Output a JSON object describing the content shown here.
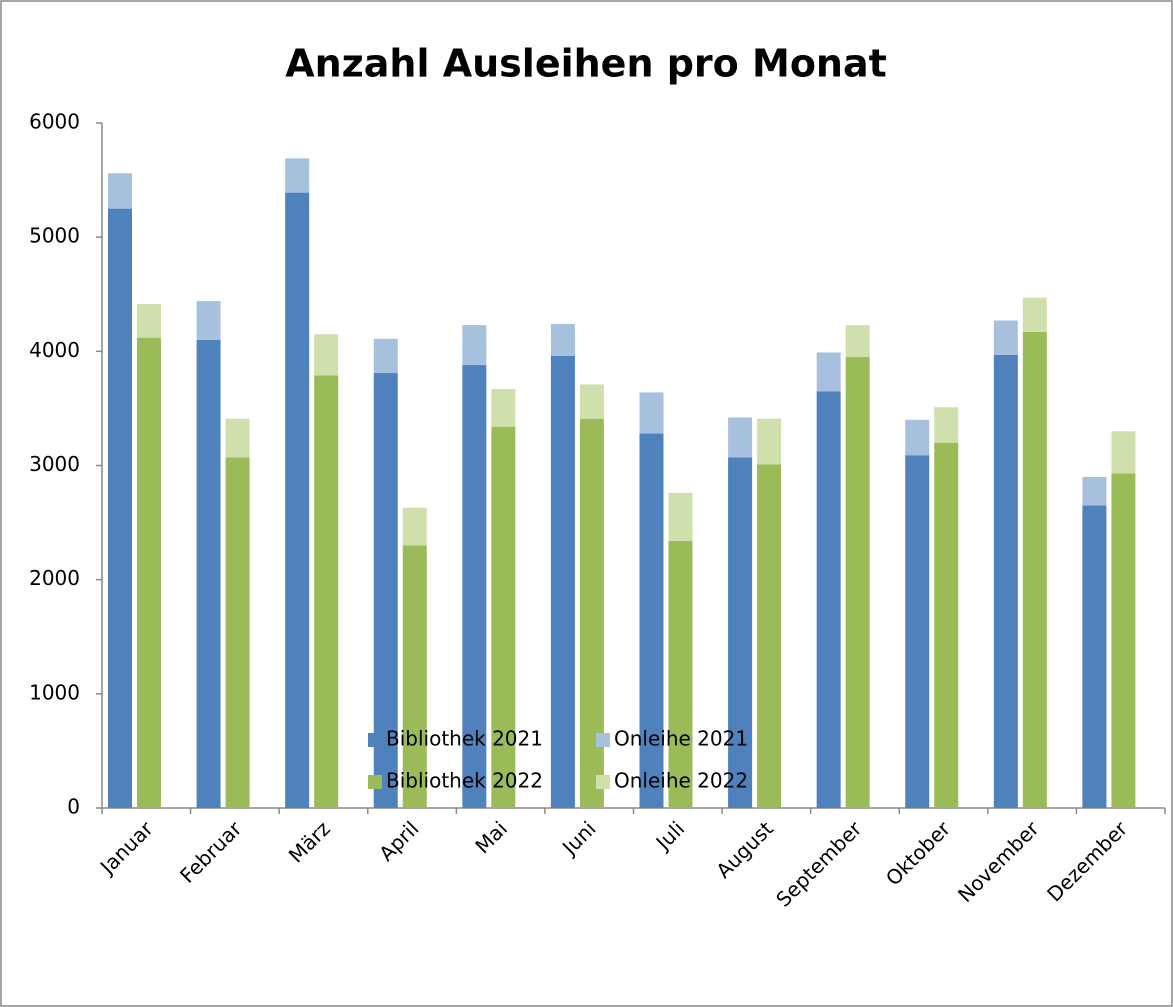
{
  "chart_data": {
    "type": "bar",
    "title": "Anzahl Ausleihen pro Monat",
    "categories": [
      "Januar",
      "Februar",
      "März",
      "April",
      "Mai",
      "Juni",
      "Juli",
      "August",
      "September",
      "Oktober",
      "November",
      "Dezember"
    ],
    "series": [
      {
        "name": "Bibliothek 2021",
        "color": "#4f81bd",
        "values": [
          5250,
          4100,
          5390,
          3810,
          3880,
          3960,
          3280,
          3070,
          3650,
          3090,
          3970,
          2650
        ]
      },
      {
        "name": "Onleihe 2021",
        "color": "#a7c0de",
        "values": [
          310,
          340,
          300,
          300,
          350,
          280,
          360,
          350,
          340,
          310,
          300,
          250
        ]
      },
      {
        "name": "Bibliothek 2022",
        "color": "#9bbb59",
        "values": [
          4120,
          3070,
          3790,
          2300,
          3340,
          3410,
          2340,
          3010,
          3950,
          3200,
          4170,
          2930
        ]
      },
      {
        "name": "Onleihe 2022",
        "color": "#cfe0ad",
        "values": [
          295,
          340,
          360,
          330,
          330,
          300,
          420,
          400,
          280,
          310,
          300,
          370
        ]
      }
    ],
    "ylim": [
      0,
      6000
    ],
    "yticks": [
      0,
      1000,
      2000,
      3000,
      4000,
      5000,
      6000
    ],
    "grid": false,
    "legend": "bottom"
  }
}
